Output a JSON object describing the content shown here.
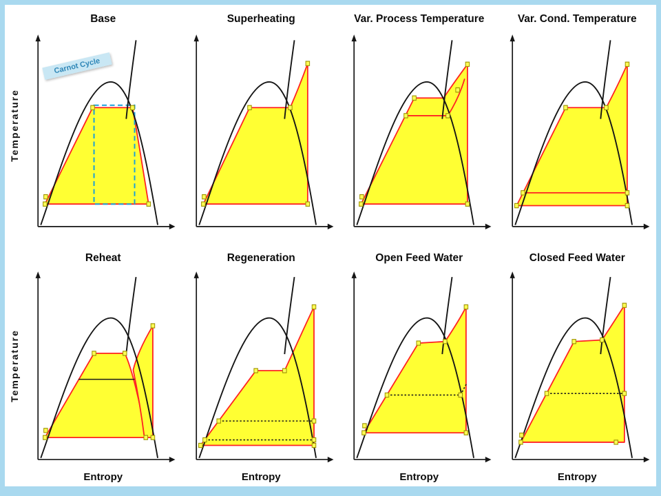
{
  "slide": {
    "frame_color": "#a9d9ef",
    "background": "#ffffff"
  },
  "labels": {
    "temperature_axis": "Temperature",
    "entropy_axis": "Entropy",
    "carnot_annotation": "Carnot Cycle"
  },
  "colors": {
    "cycle_fill": "#ffff33",
    "cycle_outline": "#ff2222",
    "saturation_dome": "#151515",
    "carnot_dash": "#1aa0d8",
    "marker_fill": "#ffff55",
    "marker_outline": "#9c9100"
  },
  "panels": {
    "base": {
      "title": "Base"
    },
    "superheating": {
      "title": "Superheating"
    },
    "var_process_temperature": {
      "title": "Var. Process Temperature"
    },
    "var_cond_temperature": {
      "title": "Var. Cond. Temperature"
    },
    "reheat": {
      "title": "Reheat"
    },
    "regeneration": {
      "title": "Regeneration"
    },
    "open_feed_water": {
      "title": "Open Feed Water"
    },
    "closed_feed_water": {
      "title": "Closed Feed Water"
    }
  }
}
